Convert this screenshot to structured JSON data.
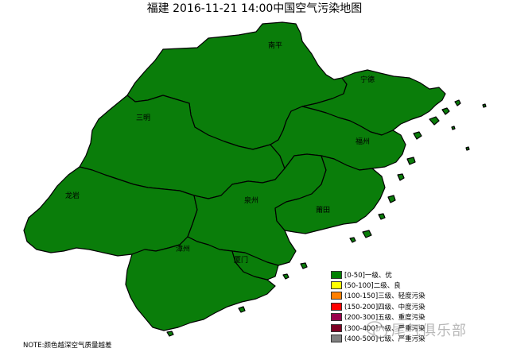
{
  "title": "福建 2016-11-21 14:00中国空气污染地图",
  "colors": {
    "region_fill": "#0a7d0a",
    "region_stroke": "#000000"
  },
  "cities": {
    "nanping": "南平",
    "ningde": "宁德",
    "sanming": "三明",
    "fuzhou": "福州",
    "longyan": "龙岩",
    "quanzhou": "泉州",
    "putian": "莆田",
    "zhangzhou": "漳州",
    "xiamen": "厦门"
  },
  "legend": [
    {
      "label": "[0-50]一级、优",
      "color": "#008000"
    },
    {
      "label": "(50-100]二级、良",
      "color": "#ffff00"
    },
    {
      "label": "(100-150]三级、轻度污染",
      "color": "#ff7f00"
    },
    {
      "label": "(150-200]四级、中度污染",
      "color": "#ff0000"
    },
    {
      "label": "(200-300]五级、重度污染",
      "color": "#99004c"
    },
    {
      "label": "(300-400]六级、严重污染",
      "color": "#7e0023"
    },
    {
      "label": "(400-500]七级、严重污染",
      "color": "#808080"
    }
  ],
  "note": "NOTE:颜色越深空气质量越差",
  "watermark": {
    "icon": "wechat-icon",
    "text": "尾气俱乐部"
  }
}
